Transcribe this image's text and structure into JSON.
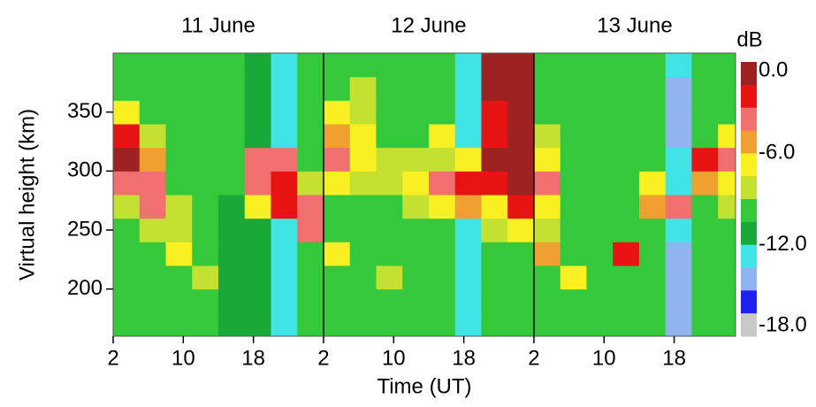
{
  "chart_data": {
    "type": "heatmap",
    "x_label": "Time (UT)",
    "y_label": "Virtual height (km)",
    "annotations": [
      "11 June",
      "12 June",
      "13 June"
    ],
    "day_boundaries": [
      26,
      50
    ],
    "xlim": [
      2,
      73
    ],
    "xticks": [
      2,
      10,
      18,
      {
        "value": 26,
        "label": "2"
      },
      {
        "value": 34,
        "label": "10"
      },
      {
        "value": 42,
        "label": "18"
      },
      {
        "value": 50,
        "label": "2"
      },
      {
        "value": 58,
        "label": "10"
      },
      {
        "value": 66,
        "label": "18"
      }
    ],
    "ylim": [
      160,
      400
    ],
    "yticks": [
      200,
      250,
      300,
      350
    ],
    "x_bins": [
      2,
      5,
      8,
      11,
      14,
      17,
      20,
      23,
      26,
      29,
      32,
      35,
      38,
      41,
      44,
      47,
      50,
      53,
      56,
      59,
      62,
      65,
      68,
      71,
      73
    ],
    "y_bins": [
      160,
      180,
      200,
      220,
      240,
      260,
      280,
      300,
      320,
      340,
      360,
      380,
      400
    ],
    "z": [
      [
        -10,
        -10,
        -10,
        -10,
        -11,
        -11,
        -12,
        -10,
        -10,
        -10,
        -10,
        -10,
        -10,
        -12.5,
        -10,
        -10,
        -10,
        -10,
        -10,
        -10,
        -10,
        -14,
        -10,
        -10
      ],
      [
        -10,
        -10,
        -10,
        -9,
        -11,
        -11,
        -12,
        -10,
        -10,
        -10,
        -9,
        -9,
        -10,
        -12.5,
        -10,
        -10,
        -10,
        -9,
        -10,
        -10,
        -10,
        -14,
        -10,
        -10
      ],
      [
        -10,
        -10,
        -9,
        -8,
        -11,
        -11,
        -12,
        -10,
        -10,
        -9,
        -8,
        -9,
        -10,
        -12.5,
        -10,
        -10,
        -9,
        -7,
        -10,
        -10,
        -10,
        -14,
        -10,
        -10
      ],
      [
        -10,
        -9,
        -7,
        -10,
        -11,
        -11,
        -12,
        -10,
        -6,
        -9,
        -10,
        -9,
        -10,
        -12.5,
        -10,
        -10,
        -5,
        -9,
        -10,
        -2,
        -10,
        -14,
        -10,
        -10
      ],
      [
        -9,
        -8,
        -8,
        -10,
        -11,
        -11,
        -12,
        -3,
        -9,
        -9,
        -10,
        -9,
        -9,
        -12.5,
        -8,
        -6,
        -8,
        -9,
        -10,
        -10,
        -10,
        -13,
        -10,
        -10
      ],
      [
        -8,
        -3,
        -8,
        -10,
        -11,
        -6,
        -2,
        -3,
        -9,
        -9,
        -9,
        -8,
        -6,
        -5,
        -6,
        -2,
        -7,
        -9,
        -10,
        -10,
        -5,
        -3,
        -9,
        -8
      ],
      [
        -4,
        -3,
        -9,
        -10,
        -10,
        -3,
        -2,
        -8,
        -7,
        -8,
        -8,
        -7,
        -3,
        -2,
        -2,
        -0.5,
        -3,
        -9,
        -10,
        -10,
        -7,
        -12.5,
        -5,
        -6
      ],
      [
        -1,
        -5,
        -10,
        -10,
        -10,
        -3,
        -3,
        -9,
        -3,
        -7,
        -8,
        -8,
        -8,
        -6,
        -1,
        -0.5,
        -6,
        -10,
        -10,
        -10,
        -10,
        -13,
        -2,
        -3
      ],
      [
        -2,
        -8,
        -10,
        -10,
        -10,
        -11,
        -12,
        -10,
        -5,
        -7,
        -9,
        -9,
        -7,
        -12.5,
        -2,
        -0.5,
        -8,
        -10,
        -10,
        -10,
        -10,
        -14,
        -10,
        -7
      ],
      [
        -6,
        -9,
        -10,
        -10,
        -10,
        -11,
        -12,
        -10,
        -6,
        -8,
        -10,
        -10,
        -9,
        -12.5,
        -2,
        -1,
        -9,
        -10,
        -10,
        -10,
        -10,
        -14,
        -10,
        -9
      ],
      [
        -9,
        -10,
        -10,
        -10,
        -10,
        -11,
        -12,
        -10,
        -9,
        -8,
        -10,
        -10,
        -10,
        -12.5,
        -1,
        -1,
        -9,
        -10,
        -10,
        -10,
        -10,
        -14,
        -10,
        -10
      ],
      [
        -9,
        -10,
        -10,
        -10,
        -10,
        -11,
        -12,
        -10,
        -10,
        -9,
        -10,
        -10,
        -10,
        -12.5,
        -1,
        -1,
        -9,
        -10,
        -10,
        -10,
        -10,
        -13,
        -10,
        -10
      ]
    ],
    "colorbar_label": "dB",
    "zlim": [
      -18,
      0
    ],
    "zticks": [
      {
        "value": 0,
        "label": "0.0"
      },
      {
        "value": -6,
        "label": "-6.0"
      },
      {
        "value": -12,
        "label": "-12.0"
      },
      {
        "value": -18,
        "label": "-18.0"
      }
    ],
    "colors": [
      "#9e2222",
      "#e81414",
      "#f07070",
      "#f0a030",
      "#f8f020",
      "#c4e030",
      "#34c83a",
      "#1aa83a",
      "#40e4e4",
      "#90b4f0",
      "#2020f0",
      "#c8c8c8"
    ]
  }
}
